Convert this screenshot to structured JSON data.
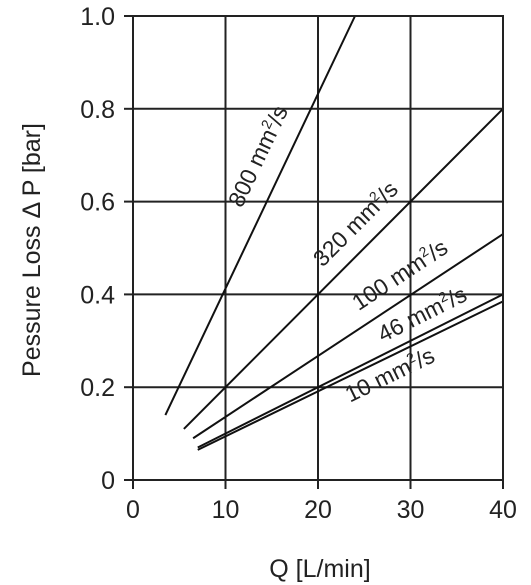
{
  "chart_data": {
    "type": "line",
    "xlabel": "Q [L/min]",
    "ylabel": "Pessure Loss Δ P [bar]",
    "xlim": [
      0,
      40
    ],
    "ylim": [
      0,
      1.0
    ],
    "x_ticks": [
      "0",
      "10",
      "20",
      "30",
      "40"
    ],
    "y_ticks": [
      "0",
      "0.2",
      "0.4",
      "0.6",
      "0.8",
      "1.0"
    ],
    "grid": true,
    "line_color": "#111111",
    "series": [
      {
        "label_base": "800 mm",
        "label_sup": "2",
        "label_tail": "/s",
        "x": [
          3.5,
          24
        ],
        "y": [
          0.14,
          1.0
        ]
      },
      {
        "label_base": "320 mm",
        "label_sup": "2",
        "label_tail": "/s",
        "x": [
          5.5,
          40
        ],
        "y": [
          0.11,
          0.8
        ]
      },
      {
        "label_base": "100 mm",
        "label_sup": "2",
        "label_tail": "/s",
        "x": [
          6.5,
          40
        ],
        "y": [
          0.09,
          0.53
        ]
      },
      {
        "label_base": "46 mm",
        "label_sup": "2",
        "label_tail": "/s",
        "x": [
          7,
          40
        ],
        "y": [
          0.07,
          0.4
        ]
      },
      {
        "label_base": "10 mm",
        "label_sup": "2",
        "label_tail": "/s",
        "x": [
          7,
          40
        ],
        "y": [
          0.065,
          0.385
        ]
      }
    ]
  }
}
